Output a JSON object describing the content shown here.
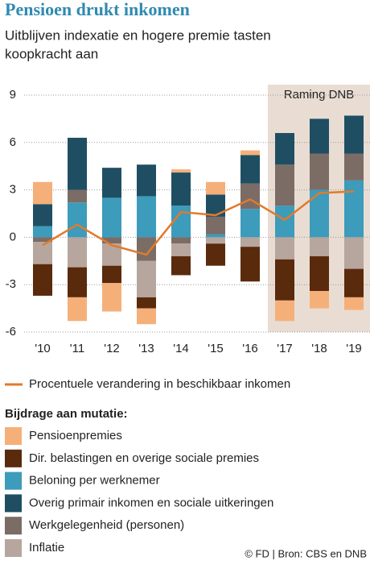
{
  "chart_data": {
    "type": "bar",
    "stacked": true,
    "title": "Pensioen drukt inkomen",
    "subtitle": [
      "Uitblijven indexatie en hogere premie tasten",
      "koopkracht aan"
    ],
    "categories": [
      "'10",
      "'11",
      "'12",
      "'13",
      "'14",
      "'15",
      "'16",
      "'17",
      "'18",
      "'19"
    ],
    "ylim": [
      -6,
      9
    ],
    "yticks": [
      -6,
      -3,
      0,
      3,
      6,
      9
    ],
    "grid": true,
    "forecast": {
      "label": "Raming DNB",
      "start": "'17"
    },
    "line": {
      "name": "Procentuele verandering in beschikbaar inkomen",
      "color": "#e07b2a",
      "values": [
        -0.5,
        0.8,
        -0.5,
        -1.1,
        1.6,
        1.4,
        2.4,
        1.1,
        2.8,
        2.9
      ]
    },
    "legend_title": "Bijdrage aan mutatie:",
    "series": [
      {
        "name": "Pensioenpremies",
        "color": "#f5b07a",
        "values": [
          1.4,
          -1.5,
          -1.8,
          -1.0,
          0.2,
          0.8,
          0.3,
          -1.3,
          -1.1,
          -0.8
        ]
      },
      {
        "name": "Dir. belastingen en overige sociale premies",
        "color": "#5a2a0c",
        "values": [
          -2.0,
          -1.9,
          -1.1,
          -0.7,
          -1.2,
          -1.4,
          -2.2,
          -2.6,
          -2.2,
          -1.8
        ]
      },
      {
        "name": "Beloning per werknemer",
        "color": "#3d9bbb",
        "values": [
          0.7,
          2.2,
          2.5,
          2.6,
          2.0,
          0.2,
          1.8,
          2.0,
          3.0,
          3.6
        ]
      },
      {
        "name": "Overig primair inkomen en sociale uitkeringen",
        "color": "#1f4e63",
        "values": [
          1.4,
          3.3,
          1.9,
          2.0,
          2.1,
          1.4,
          1.8,
          2.0,
          2.2,
          2.4
        ]
      },
      {
        "name": "Werkgelegenheid (personen)",
        "color": "#7b6c66",
        "values": [
          -0.3,
          0.8,
          -0.4,
          -1.5,
          -0.4,
          1.1,
          1.6,
          2.6,
          2.3,
          1.7
        ]
      },
      {
        "name": "Inflatie",
        "color": "#b6a69d",
        "values": [
          -1.4,
          -1.9,
          -1.4,
          -2.3,
          -0.8,
          -0.4,
          -0.6,
          -1.4,
          -1.2,
          -2.0
        ]
      }
    ],
    "source": "© FD | Bron: CBS en DNB"
  }
}
